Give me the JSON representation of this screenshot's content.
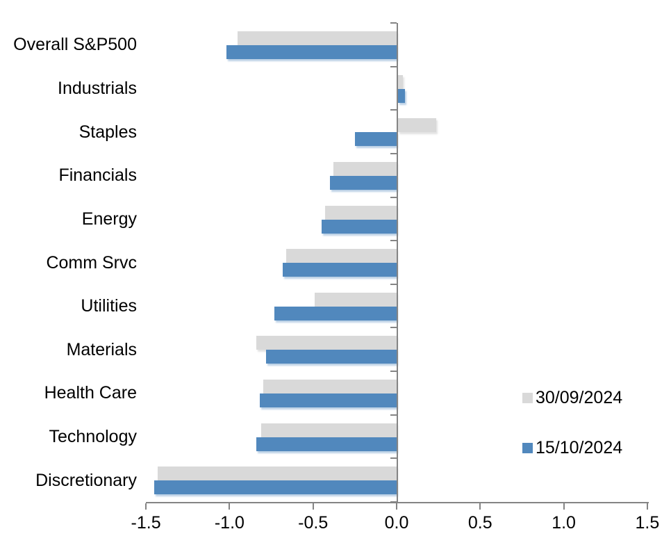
{
  "chart_data": {
    "type": "bar",
    "orientation": "horizontal",
    "title": "",
    "xlabel": "",
    "ylabel": "",
    "grid": false,
    "categories": [
      "Overall S&P500",
      "Industrials",
      "Staples",
      "Financials",
      "Energy",
      "Comm Srvc",
      "Utilities",
      "Materials",
      "Health Care",
      "Technology",
      "Discretionary"
    ],
    "series": [
      {
        "name": "30/09/2024",
        "color": "#d9d9d9",
        "values": [
          -0.95,
          0.03,
          0.23,
          -0.38,
          -0.43,
          -0.66,
          -0.49,
          -0.84,
          -0.8,
          -0.81,
          -1.43
        ]
      },
      {
        "name": "15/10/2024",
        "color": "#5188bd",
        "values": [
          -1.02,
          0.04,
          -0.25,
          -0.4,
          -0.45,
          -0.68,
          -0.73,
          -0.78,
          -0.82,
          -0.84,
          -1.45
        ]
      }
    ],
    "xlim": [
      -1.5,
      1.5
    ],
    "x_ticks": [
      -1.5,
      -1.0,
      -0.5,
      0.0,
      0.5,
      1.0,
      1.5
    ],
    "x_tick_labels": [
      "-1.5",
      "-1.0",
      "-0.5",
      "0.0",
      "0.5",
      "1.0",
      "1.5"
    ],
    "legend_position": "middle-right"
  },
  "colors": {
    "axis": "#848484",
    "background": "#ffffff",
    "text": "#000000",
    "series_prev": "#d9d9d9",
    "series_curr": "#5188bd"
  }
}
